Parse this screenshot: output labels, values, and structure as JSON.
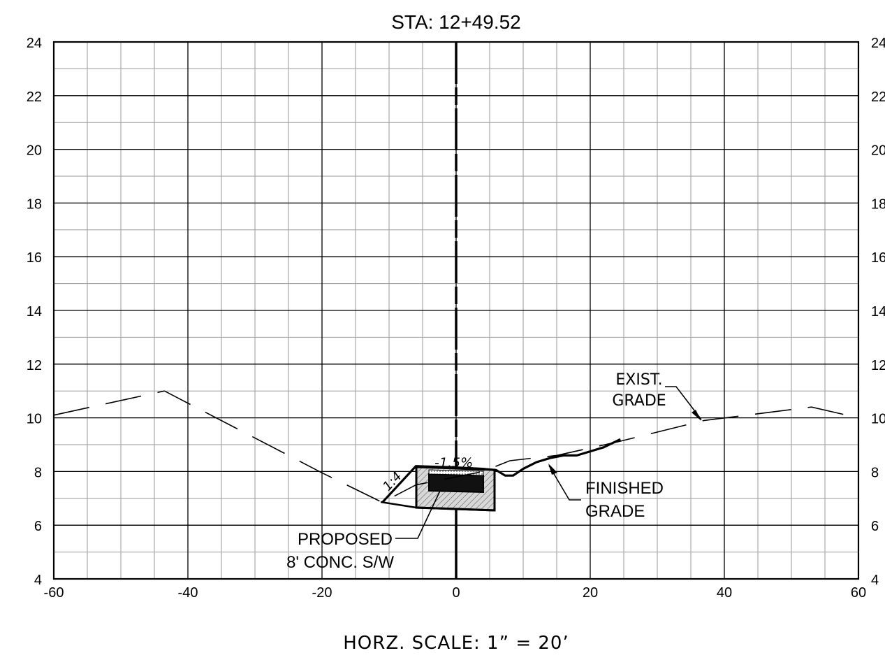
{
  "title": "STA: 12+49.52",
  "scale_note": "HORZ. SCALE: 1” = 20’",
  "annotations": {
    "exist_grade": [
      "EXIST.",
      "GRADE"
    ],
    "finished_grade": [
      "FINISHED",
      "GRADE"
    ],
    "proposed_sidewalk": [
      "PROPOSED",
      "8' CONC. S/W"
    ],
    "slope_ratio": "1:4",
    "cross_slope": "-1.5%"
  },
  "chart_data": {
    "type": "line",
    "title": "STA: 12+49.52",
    "xlim": [
      -60,
      60
    ],
    "ylim": [
      4,
      24
    ],
    "x_ticks": [
      -60,
      -40,
      -20,
      0,
      20,
      40,
      60
    ],
    "y_ticks": [
      4,
      6,
      8,
      10,
      12,
      14,
      16,
      18,
      20,
      22,
      24
    ],
    "grid": true,
    "series": [
      {
        "name": "EXIST. GRADE",
        "style": "dashed",
        "x": [
          -60,
          -43.5,
          -20,
          -11,
          -6,
          4,
          8,
          15,
          24,
          37,
          53,
          60
        ],
        "y": [
          10.1,
          11.0,
          7.95,
          6.85,
          7.5,
          8.0,
          8.4,
          8.6,
          9.1,
          9.9,
          10.4,
          10.0
        ]
      },
      {
        "name": "FINISHED GRADE",
        "style": "solid",
        "x": [
          -11,
          -6,
          0,
          4,
          6,
          7.3,
          8.5,
          10,
          12,
          14,
          16,
          18,
          20,
          22,
          24.5
        ],
        "y": [
          6.85,
          8.2,
          8.15,
          8.1,
          8.05,
          7.85,
          7.85,
          8.1,
          8.35,
          8.5,
          8.6,
          8.6,
          8.75,
          8.9,
          9.2
        ]
      }
    ]
  }
}
